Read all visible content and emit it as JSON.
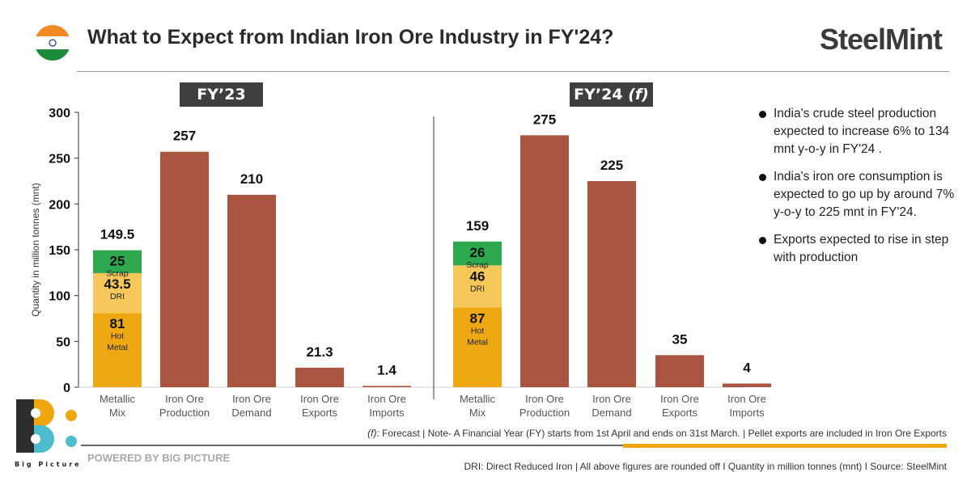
{
  "header": {
    "title": "What to Expect from Indian Iron Ore Industry in FY'24?",
    "logo": "SteelMint",
    "flag_icon": "india-flag-icon"
  },
  "colors": {
    "bar": "#a9553f",
    "hot_metal": "#eea912",
    "dri": "#f6c75a",
    "scrap": "#2ea84f",
    "accent": "#f0a70f"
  },
  "chart_data": {
    "type": "bar",
    "ylabel": "Quantity in million tonnes (mnt)",
    "ylim": [
      0,
      300
    ],
    "yticks": [
      0,
      50,
      100,
      150,
      200,
      250,
      300
    ],
    "categories": [
      "Metallic Mix",
      "Iron Ore Production",
      "Iron Ore Demand",
      "Iron Ore Exports",
      "Iron Ore Imports"
    ],
    "category_lines": [
      [
        "Metallic",
        "Mix"
      ],
      [
        "Iron Ore",
        "Production"
      ],
      [
        "Iron Ore",
        "Demand"
      ],
      [
        "Iron Ore",
        "Exports"
      ],
      [
        "Iron Ore",
        "Imports"
      ]
    ],
    "panels": [
      {
        "label": "FY’23",
        "metallic_total": "149.5",
        "stack": [
          {
            "name": "Hot Metal",
            "lines": [
              "Hot",
              "Metal"
            ],
            "value": 81,
            "label": "81"
          },
          {
            "name": "DRI",
            "lines": [
              "DRI"
            ],
            "value": 43.5,
            "label": "43.5"
          },
          {
            "name": "Scrap",
            "lines": [
              "Scrap"
            ],
            "value": 25,
            "label": "25"
          }
        ],
        "values": [
          257,
          210,
          21.3,
          1.4
        ],
        "labels": [
          "257",
          "210",
          "21.3",
          "1.4"
        ]
      },
      {
        "label": "FY’24",
        "label_suffix": "(f)",
        "metallic_total": "159",
        "stack": [
          {
            "name": "Hot Metal",
            "lines": [
              "Hot",
              "Metal"
            ],
            "value": 87,
            "label": "87"
          },
          {
            "name": "DRI",
            "lines": [
              "DRI"
            ],
            "value": 46,
            "label": "46"
          },
          {
            "name": "Scrap",
            "lines": [
              "Scrap"
            ],
            "value": 26,
            "label": "26"
          }
        ],
        "values": [
          275,
          225,
          35,
          4
        ],
        "labels": [
          "275",
          "225",
          "35",
          "4"
        ]
      }
    ]
  },
  "notes": [
    "India's crude steel production expected to increase 6% to 134 mnt y-o-y in FY'24 .",
    "India's iron ore consumption is expected to go up by around 7% y-o-y to 225 mnt in FY'24.",
    "Exports expected to rise in step with production"
  ],
  "footer": {
    "forecast_prefix": "(f)",
    "forecast_note": ": Forecast | Note- A Financial Year (FY) starts from 1st April and ends on 31st March. | Pellet exports are included in Iron Ore Exports",
    "powered": "POWERED BY BIG PICTURE",
    "source": "DRI: Direct Reduced Iron | All above figures are rounded off  I  Quantity in million tonnes (mnt)  I  Source: SteelMint",
    "brand": "Big Picture"
  }
}
